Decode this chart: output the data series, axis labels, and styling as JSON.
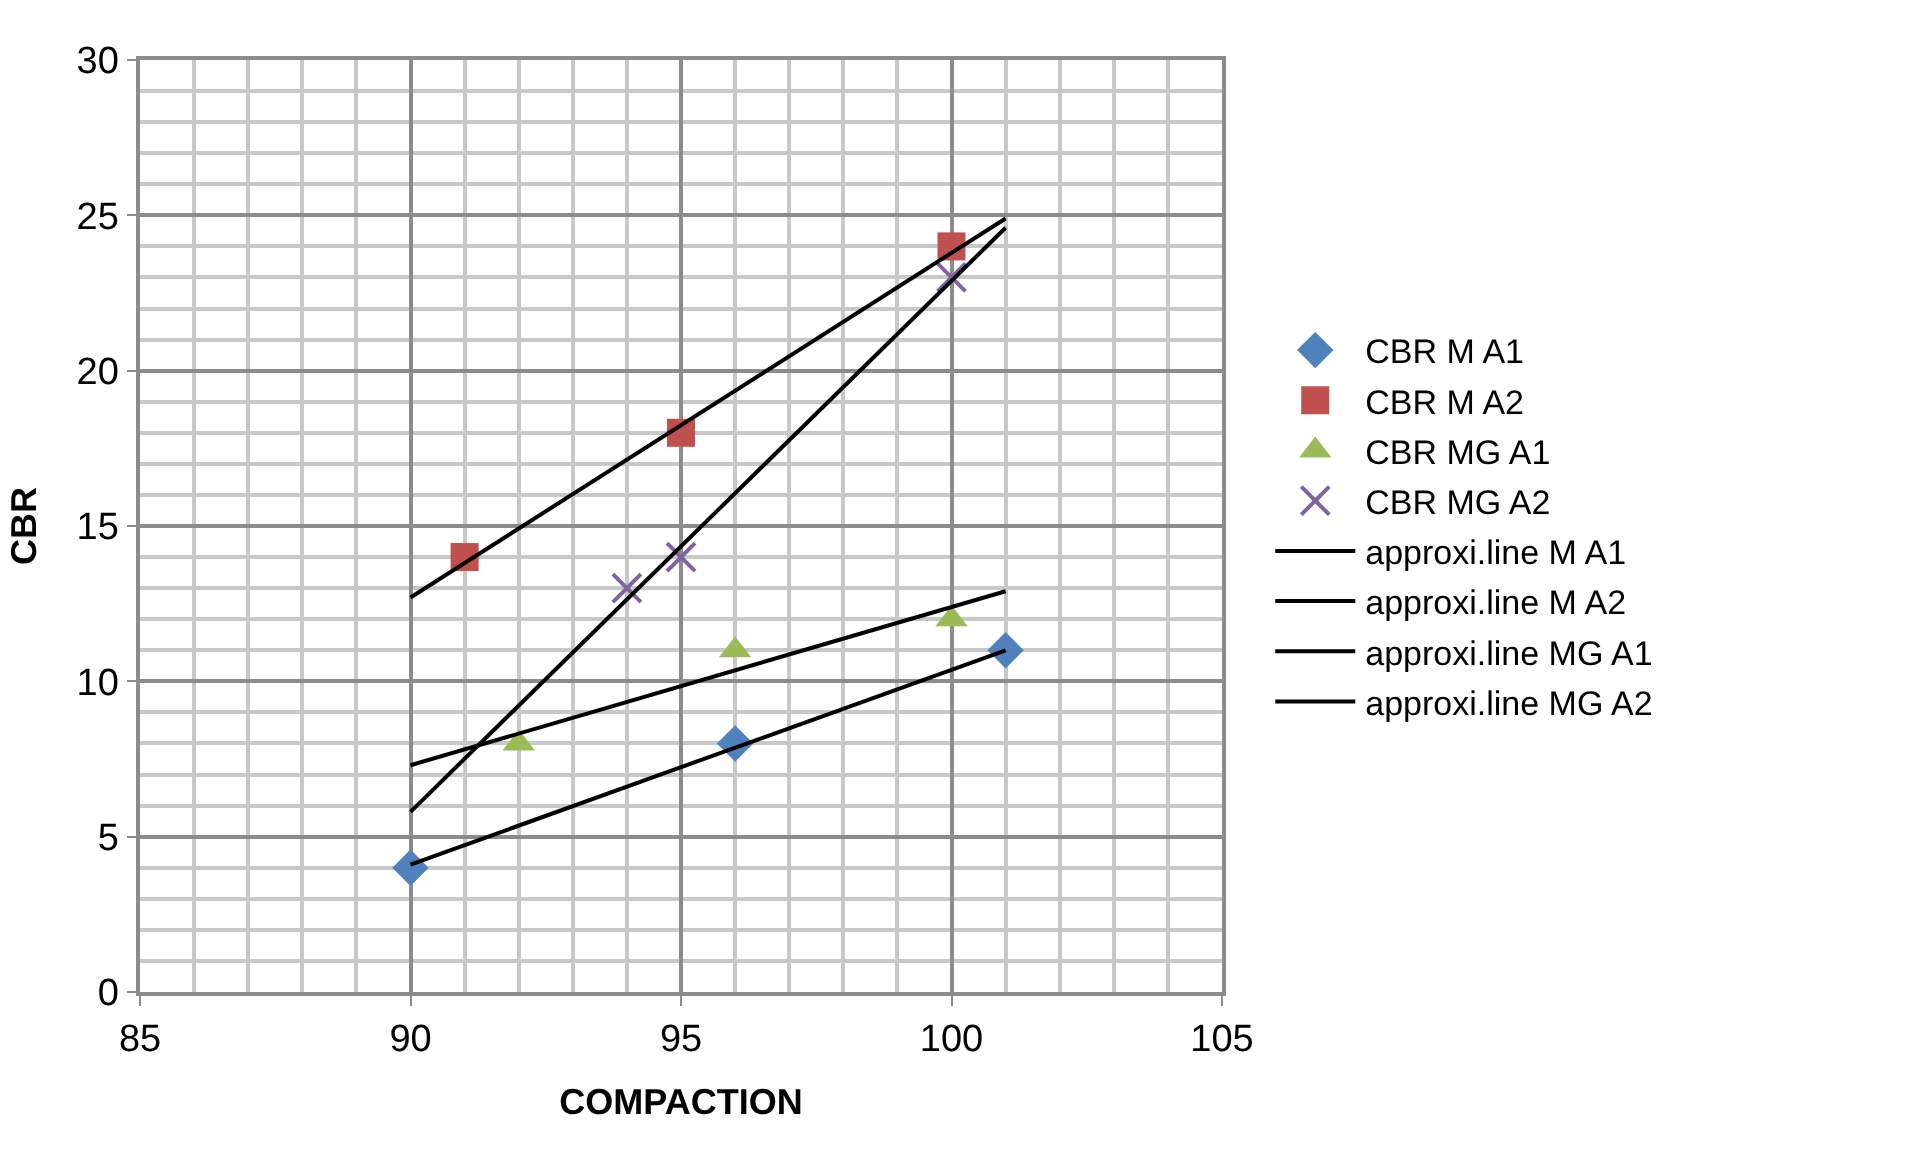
{
  "chart_data": {
    "type": "scatter",
    "xlabel": "COMPACTION",
    "ylabel": "CBR",
    "xlim": [
      85,
      105
    ],
    "xticks": [
      85,
      90,
      95,
      100,
      105
    ],
    "ylim": [
      0,
      30
    ],
    "yticks": [
      0,
      5,
      10,
      15,
      20,
      25,
      30
    ],
    "grid": true,
    "legend": "right",
    "series": [
      {
        "name": "CBR M A1",
        "color": "#4f81bd",
        "marker": "diamond",
        "x": [
          90,
          96,
          101
        ],
        "values": [
          4,
          8,
          11
        ]
      },
      {
        "name": "CBR M A2",
        "color": "#c0504d",
        "marker": "square",
        "x": [
          91,
          95,
          100
        ],
        "values": [
          14,
          18,
          24
        ]
      },
      {
        "name": "CBR MG A1",
        "color": "#9bbb59",
        "marker": "triangle",
        "x": [
          92,
          96,
          100
        ],
        "values": [
          8,
          11,
          12
        ]
      },
      {
        "name": "CBR MG A2",
        "color": "#8064a2",
        "marker": "cross",
        "x": [
          94,
          95,
          100
        ],
        "values": [
          13,
          14,
          23
        ]
      },
      {
        "name": "approxi.line M A1",
        "type": "line",
        "color": "#000000",
        "marker": "none",
        "x": [
          90,
          101
        ],
        "values": [
          4.1,
          11.0
        ]
      },
      {
        "name": "approxi.line M A2",
        "type": "line",
        "color": "#000000",
        "marker": "none",
        "x": [
          90,
          101
        ],
        "values": [
          12.7,
          24.9
        ]
      },
      {
        "name": "approxi.line MG A1",
        "type": "line",
        "color": "#000000",
        "marker": "none",
        "x": [
          90,
          101
        ],
        "values": [
          7.3,
          12.9
        ]
      },
      {
        "name": "approxi.line MG A2",
        "type": "line",
        "color": "#000000",
        "marker": "none",
        "x": [
          90,
          101
        ],
        "values": [
          5.8,
          24.6
        ]
      }
    ]
  }
}
